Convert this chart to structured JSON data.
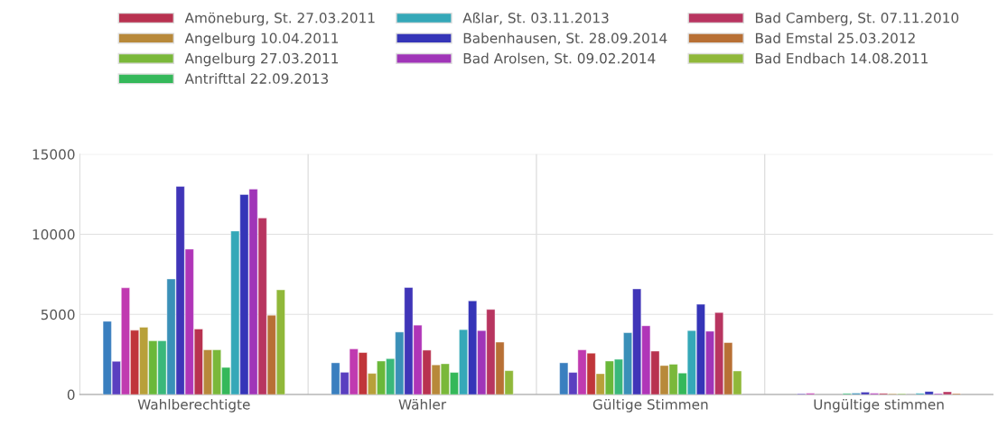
{
  "chart_data": {
    "type": "bar",
    "categories": [
      "Wahlberechtigte",
      "Wähler",
      "Gültige Stimmen",
      "Ungültige stimmen"
    ],
    "ylim": [
      0,
      15000
    ],
    "yticks": [
      0,
      5000,
      10000,
      15000
    ],
    "grid": true,
    "legend": "top",
    "series": [
      {
        "color": "#3a7fbf",
        "values": [
          4570,
          1980,
          1980,
          null
        ]
      },
      {
        "color": "#5a3fc0",
        "values": [
          2070,
          1390,
          1380,
          50
        ]
      },
      {
        "color": "#c03ab0",
        "values": [
          6660,
          2850,
          2790,
          80
        ]
      },
      {
        "color": "#c0353a",
        "values": [
          4010,
          2620,
          2580,
          null
        ]
      },
      {
        "color": "#b8a03a",
        "values": [
          4200,
          1320,
          1300,
          null
        ]
      },
      {
        "color": "#6ab83a",
        "values": [
          3350,
          2090,
          2090,
          null
        ]
      },
      {
        "color": "#3ab87a",
        "values": [
          3350,
          2240,
          2200,
          70
        ]
      },
      {
        "color": "#3a90b8",
        "values": [
          7210,
          3900,
          3860,
          90
        ]
      },
      {
        "color": "#4035b8",
        "values": [
          12990,
          6680,
          6590,
          150
        ]
      },
      {
        "color": "#b035b8",
        "values": [
          9070,
          4330,
          4290,
          80
        ]
      },
      {
        "name": "Amöneburg, St. 27.03.2011",
        "color": "#b83250",
        "values": [
          4090,
          2770,
          2710,
          70
        ]
      },
      {
        "name": "Angelburg 10.04.2011",
        "color": "#b8893a",
        "values": [
          2790,
          1850,
          1810,
          50
        ]
      },
      {
        "name": "Angelburg 27.03.2011",
        "color": "#7ab83a",
        "values": [
          2790,
          1920,
          1890,
          50
        ]
      },
      {
        "name": "Antrifttal 22.09.2013",
        "color": "#35b85a",
        "values": [
          1690,
          1380,
          1340,
          null
        ]
      },
      {
        "name": "Aßlar, St. 03.11.2013",
        "color": "#35a8b8",
        "values": [
          10200,
          4050,
          3990,
          80
        ]
      },
      {
        "name": "Babenhausen, St. 28.09.2014",
        "color": "#3535b8",
        "values": [
          12480,
          5840,
          5630,
          190
        ]
      },
      {
        "name": "Bad Arolsen, St. 09.02.2014",
        "color": "#a035b8",
        "values": [
          12820,
          3990,
          3950,
          60
        ]
      },
      {
        "name": "Bad Camberg, St. 07.11.2010",
        "color": "#b83560",
        "values": [
          11010,
          5310,
          5120,
          170
        ]
      },
      {
        "name": "Bad Emstal 25.03.2012",
        "color": "#b87035",
        "values": [
          4950,
          3270,
          3240,
          60
        ]
      },
      {
        "name": "Bad Endbach 14.08.2011",
        "color": "#90b83a",
        "values": [
          6530,
          1490,
          1470,
          null
        ]
      }
    ]
  }
}
